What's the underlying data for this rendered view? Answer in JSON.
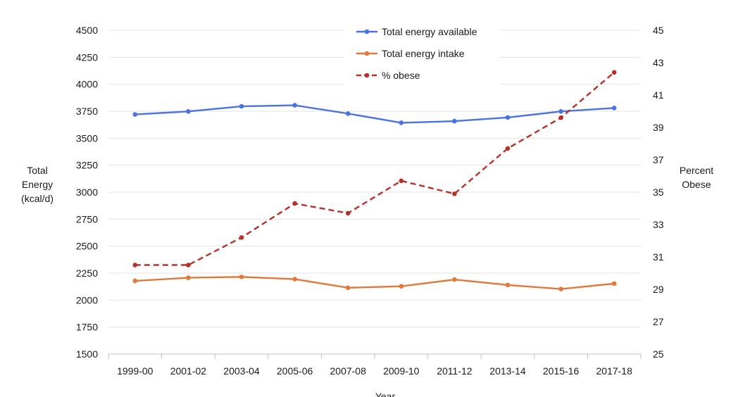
{
  "chart_data": {
    "type": "line",
    "categories": [
      "1999-00",
      "2001-02",
      "2003-04",
      "2005-06",
      "2007-08",
      "2009-10",
      "2011-12",
      "2013-14",
      "2015-16",
      "2017-18"
    ],
    "series": [
      {
        "name": "Total energy available",
        "axis": "left",
        "color": "#4a72e0",
        "line_style": "solid",
        "values": [
          3720,
          3748,
          3795,
          3805,
          3728,
          3643,
          3658,
          3692,
          3748,
          3780
        ]
      },
      {
        "name": "Total energy intake",
        "axis": "left",
        "color": "#e0793a",
        "line_style": "solid",
        "values": [
          2178,
          2207,
          2215,
          2194,
          2114,
          2128,
          2190,
          2140,
          2103,
          2153
        ]
      },
      {
        "name": "% obese",
        "axis": "right",
        "color": "#b5322a",
        "line_style": "dashed",
        "values": [
          30.5,
          30.5,
          32.2,
          34.3,
          33.7,
          35.7,
          34.9,
          37.7,
          39.6,
          42.4
        ]
      }
    ],
    "xlabel": "Year",
    "ylabel_left": [
      "Total",
      "Energy",
      "(kcal/d)"
    ],
    "ylabel_right": [
      "Percent",
      "Obese"
    ],
    "ylim_left": [
      1500,
      4500
    ],
    "yticks_left": [
      1500,
      1750,
      2000,
      2250,
      2500,
      2750,
      3000,
      3250,
      3500,
      3750,
      4000,
      4250,
      4500
    ],
    "ylim_right": [
      25,
      45
    ],
    "yticks_right": [
      25,
      27,
      29,
      31,
      33,
      35,
      37,
      39,
      41,
      43,
      45
    ],
    "grid": true,
    "legend_position": "top-center"
  }
}
